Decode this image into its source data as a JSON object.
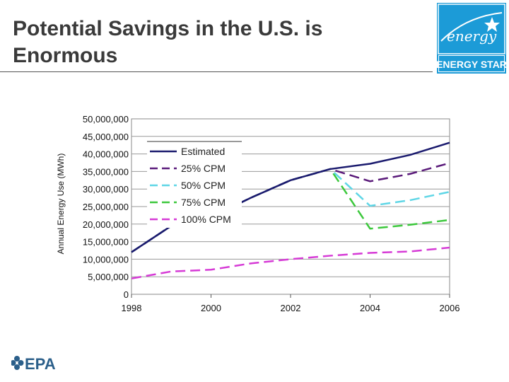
{
  "slide": {
    "title_line1": "Potential Savings in the U.S. is",
    "title_line2": "Enormous"
  },
  "logos": {
    "energy_star_wordmark": "energy",
    "energy_star_label": "ENERGY STAR",
    "epa_label": "EPA",
    "energy_star_color": "#1c9bd7",
    "epa_color": "#2b5f8a"
  },
  "chart_data": {
    "type": "line",
    "title": "",
    "xlabel": "",
    "ylabel": "Annual Energy Use (MWh)",
    "x": [
      1998,
      1999,
      2000,
      2001,
      2002,
      2003,
      2004,
      2005,
      2006
    ],
    "xticks": [
      "1998",
      "2000",
      "2002",
      "2004",
      "2006"
    ],
    "yticks": [
      "0",
      "5,000,000",
      "10,000,000",
      "15,000,000",
      "20,000,000",
      "25,000,000",
      "30,000,000",
      "35,000,000",
      "40,000,000",
      "45,000,000",
      "50,000,000"
    ],
    "ylim": [
      0,
      50000000
    ],
    "xlim": [
      1998,
      2006
    ],
    "grid": "horizontal",
    "legend_position": "top-left",
    "series": [
      {
        "name": "Estimated",
        "color": "#1a1a6e",
        "dash": "solid",
        "values": [
          12000000,
          19500000,
          22000000,
          27500000,
          32500000,
          35700000,
          37200000,
          39700000,
          43200000
        ]
      },
      {
        "name": "25% CPM",
        "color": "#5a1a7a",
        "dash": "dashed",
        "values": [
          12000000,
          19500000,
          22000000,
          27500000,
          32500000,
          35700000,
          32200000,
          34300000,
          37400000
        ]
      },
      {
        "name": "50% CPM",
        "color": "#5fd6e6",
        "dash": "dashed",
        "values": [
          12000000,
          19500000,
          22000000,
          27500000,
          32500000,
          35700000,
          25200000,
          26800000,
          29200000
        ]
      },
      {
        "name": "75% CPM",
        "color": "#3cc83c",
        "dash": "dashed",
        "values": [
          12000000,
          19500000,
          22000000,
          27500000,
          32500000,
          35700000,
          18700000,
          19800000,
          21200000
        ]
      },
      {
        "name": "100% CPM",
        "color": "#d63bd6",
        "dash": "dashed",
        "values": [
          4500000,
          6500000,
          7000000,
          8800000,
          10000000,
          11000000,
          11800000,
          12200000,
          13300000
        ]
      }
    ]
  }
}
